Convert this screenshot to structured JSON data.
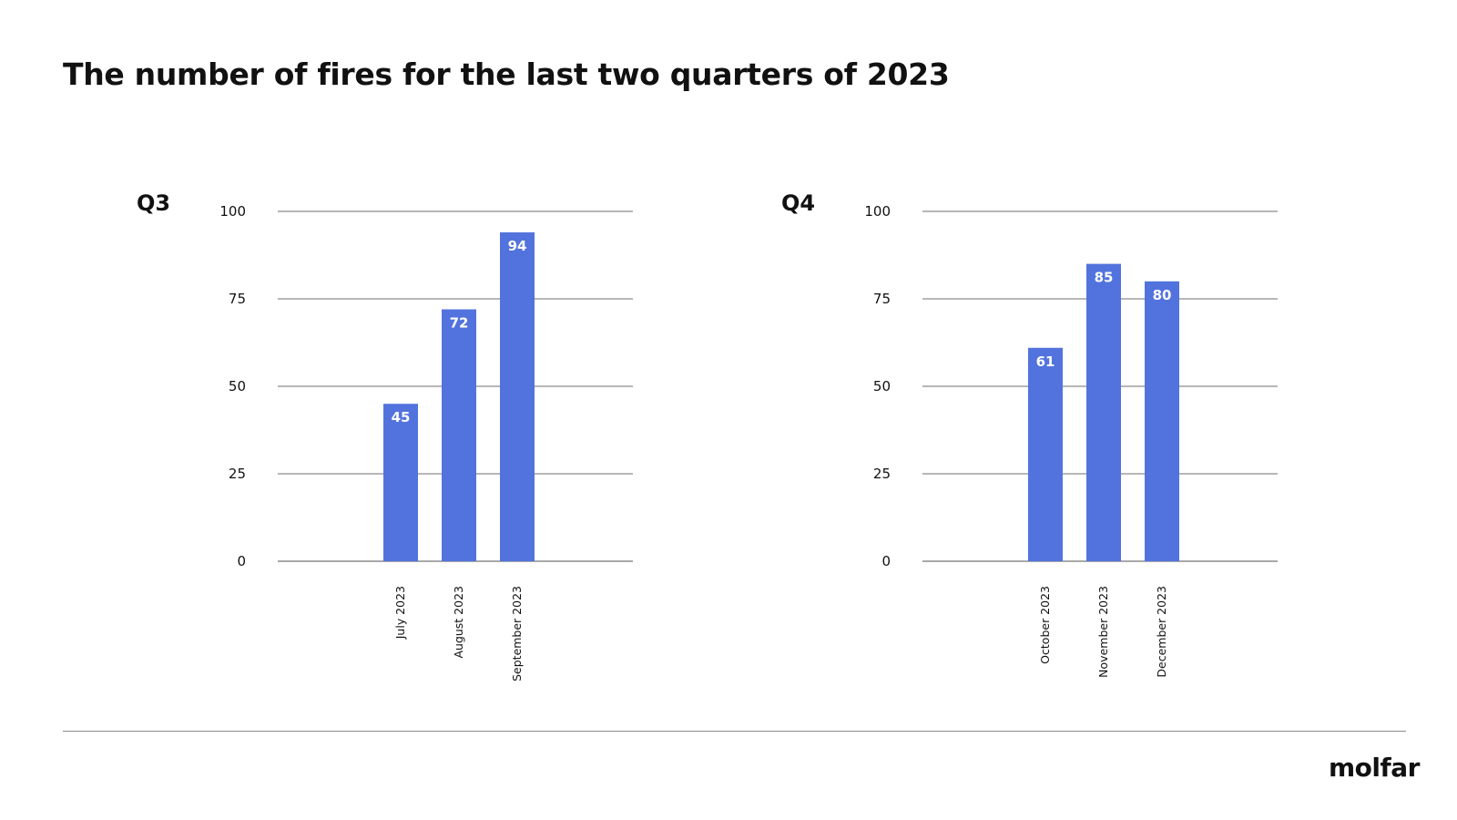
{
  "page": {
    "title": "The number of fires for the last two quarters of 2023",
    "brand": "molfar"
  },
  "colors": {
    "bar": "#5273dd",
    "grid": "#8c8c8c",
    "text": "#111111",
    "data_label": "#ffffff"
  },
  "chart_data": [
    {
      "type": "bar",
      "label": "Q3",
      "categories": [
        "July 2023",
        "August 2023",
        "September 2023"
      ],
      "values": [
        45,
        72,
        94
      ],
      "yticks": [
        0,
        25,
        50,
        75,
        100
      ],
      "ylim": [
        0,
        100
      ],
      "grid": true,
      "data_labels": true,
      "xlabel": "",
      "ylabel": ""
    },
    {
      "type": "bar",
      "label": "Q4",
      "categories": [
        "October 2023",
        "November 2023",
        "December 2023"
      ],
      "values": [
        61,
        85,
        80
      ],
      "yticks": [
        0,
        25,
        50,
        75,
        100
      ],
      "ylim": [
        0,
        100
      ],
      "grid": true,
      "data_labels": true,
      "xlabel": "",
      "ylabel": ""
    }
  ]
}
